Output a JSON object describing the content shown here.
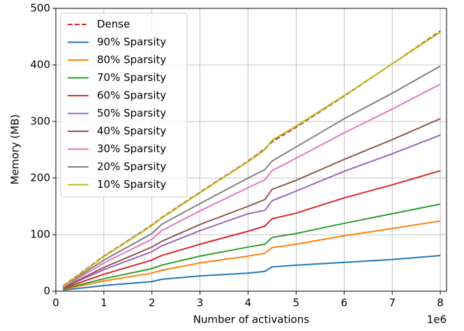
{
  "chart_data": {
    "type": "line",
    "xlabel": "Number of activations",
    "ylabel": "Memory (MB)",
    "x_offset_label": "1e6",
    "x": [
      0.15,
      1,
      2,
      2.2,
      3,
      4,
      4.35,
      4.5,
      5,
      6,
      7,
      8
    ],
    "series": [
      {
        "name": "Dense",
        "color": "#d62728",
        "linestyle": "--",
        "values": [
          9,
          62,
          117,
          130,
          175,
          230,
          252,
          264,
          290,
          345,
          402,
          460
        ]
      },
      {
        "name": "90% Sparsity",
        "color": "#1f77b4",
        "values": [
          2,
          10,
          17,
          21,
          27,
          32,
          35,
          43,
          46,
          51,
          56,
          63
        ]
      },
      {
        "name": "80% Sparsity",
        "color": "#ff7f0e",
        "values": [
          3,
          18,
          32,
          37,
          50,
          62,
          67,
          77,
          83,
          98,
          111,
          124
        ]
      },
      {
        "name": "70% Sparsity",
        "color": "#2ca02c",
        "values": [
          4,
          22,
          40,
          46,
          62,
          78,
          83,
          95,
          102,
          120,
          137,
          154
        ]
      },
      {
        "name": "60% Sparsity",
        "color": "#d62728",
        "values": [
          5,
          30,
          55,
          63,
          83,
          106,
          115,
          128,
          138,
          165,
          188,
          213
        ]
      },
      {
        "name": "50% Sparsity",
        "color": "#9467bd",
        "values": [
          6,
          38,
          70,
          80,
          107,
          137,
          143,
          160,
          177,
          212,
          243,
          276
        ]
      },
      {
        "name": "40% Sparsity",
        "color": "#8c564b",
        "values": [
          6,
          42,
          78,
          88,
          118,
          150,
          162,
          180,
          196,
          233,
          268,
          305
        ]
      },
      {
        "name": "30% Sparsity",
        "color": "#e377c2",
        "values": [
          7,
          50,
          92,
          107,
          142,
          183,
          197,
          213,
          235,
          280,
          322,
          366
        ]
      },
      {
        "name": "20% Sparsity",
        "color": "#7f7f7f",
        "values": [
          8,
          55,
          102,
          118,
          155,
          200,
          215,
          230,
          255,
          305,
          350,
          398
        ]
      },
      {
        "name": "10% Sparsity",
        "color": "#bcbd22",
        "values": [
          8,
          61,
          116,
          129,
          174,
          229,
          250,
          267,
          292,
          346,
          402,
          458
        ]
      }
    ],
    "xlim": [
      0,
      8.13
    ],
    "xticks": [
      0,
      1,
      2,
      3,
      4,
      5,
      6,
      7,
      8
    ],
    "ylim": [
      0,
      500
    ],
    "yticks": [
      0,
      100,
      200,
      300,
      400,
      500
    ],
    "grid": true,
    "legend": "upper left"
  }
}
